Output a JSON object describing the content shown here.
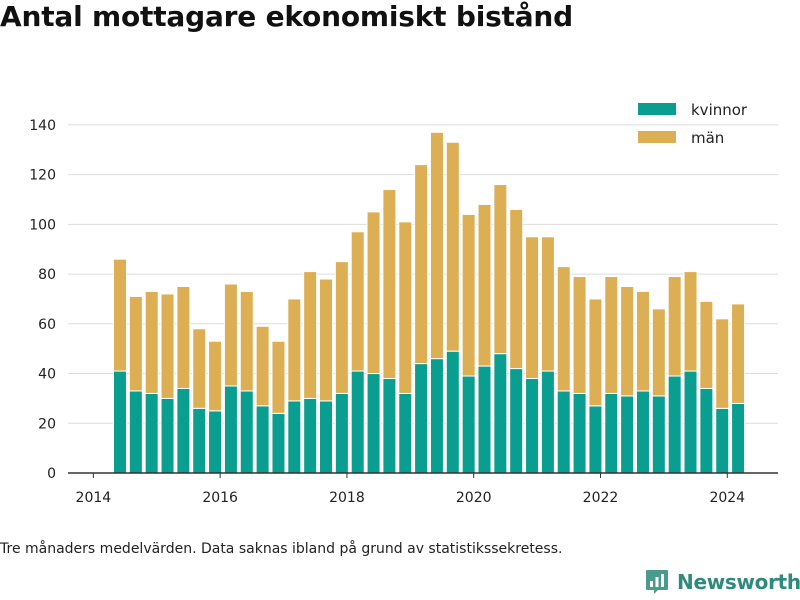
{
  "title": "Antal mottagare ekonomiskt bistånd",
  "footnote": "Tre månaders medelvärden. Data saknas ibland på grund av statistikssekretess.",
  "brand": {
    "name": "Newsworthy",
    "icon": "newsworthy-logo-icon"
  },
  "colors": {
    "kvinnor": "#0a9e90",
    "man": "#dcaf55",
    "grid": "#dddddd",
    "axis": "#333333"
  },
  "chart_data": {
    "type": "bar",
    "stacked": true,
    "x_axis": {
      "ticks": [
        "2014",
        "2016",
        "2018",
        "2020",
        "2022",
        "2024"
      ],
      "range": [
        "2013.6",
        "2024.8"
      ]
    },
    "y_axis": {
      "ticks": [
        0,
        20,
        40,
        60,
        80,
        100,
        120,
        140
      ],
      "range": [
        0,
        150
      ]
    },
    "grid": true,
    "legend_position": "top-right",
    "x": [
      "2014.42",
      "2014.67",
      "2014.92",
      "2015.17",
      "2015.42",
      "2015.67",
      "2015.92",
      "2016.17",
      "2016.42",
      "2016.67",
      "2016.92",
      "2017.17",
      "2017.42",
      "2017.67",
      "2017.92",
      "2018.17",
      "2018.42",
      "2018.67",
      "2018.92",
      "2019.17",
      "2019.42",
      "2019.67",
      "2019.92",
      "2020.17",
      "2020.42",
      "2020.67",
      "2020.92",
      "2021.17",
      "2021.42",
      "2021.67",
      "2021.92",
      "2022.17",
      "2022.42",
      "2022.67",
      "2022.92",
      "2023.17",
      "2023.42",
      "2023.67",
      "2023.92",
      "2024.17"
    ],
    "series": [
      {
        "name": "kvinnor",
        "values": [
          41,
          33,
          32,
          30,
          34,
          26,
          25,
          35,
          33,
          27,
          24,
          29,
          30,
          29,
          32,
          41,
          40,
          38,
          32,
          44,
          46,
          49,
          39,
          43,
          48,
          42,
          38,
          41,
          33,
          32,
          27,
          32,
          31,
          33,
          31,
          39,
          41,
          34,
          26,
          28
        ]
      },
      {
        "name": "män",
        "values": [
          45,
          38,
          41,
          42,
          41,
          32,
          28,
          41,
          40,
          32,
          29,
          41,
          51,
          49,
          53,
          56,
          65,
          76,
          69,
          80,
          91,
          84,
          65,
          65,
          68,
          64,
          57,
          54,
          50,
          47,
          43,
          47,
          44,
          40,
          35,
          40,
          40,
          35,
          36,
          40
        ]
      }
    ]
  }
}
